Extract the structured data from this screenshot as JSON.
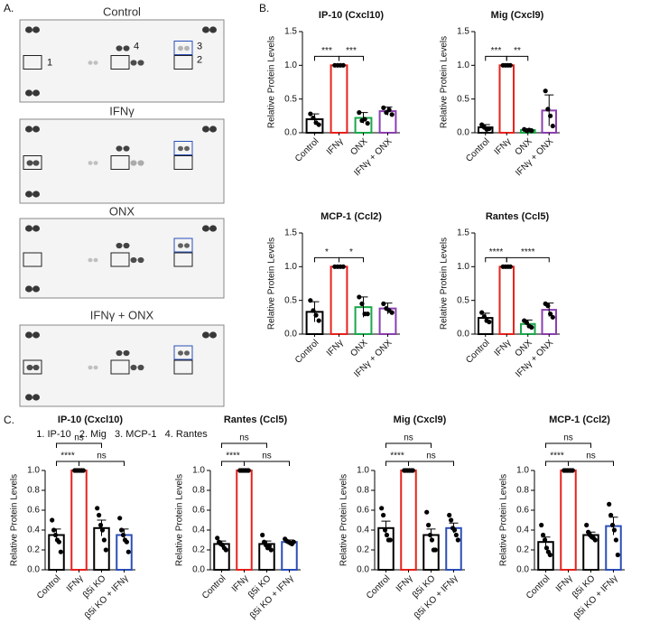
{
  "panel_labels": [
    "A.",
    "B.",
    "C."
  ],
  "blots": {
    "titles": [
      "Control",
      "IFNγ",
      "ONX",
      "IFNγ + ONX"
    ],
    "spot_labels": [
      "1",
      "4",
      "3",
      "2"
    ],
    "legend": "1. IP-10   2. Mig   3. MCP-1   4. Rantes"
  },
  "chart_data": [
    {
      "type": "bar",
      "title": "IP-10 (Cxcl10)",
      "y_label": "Relative Protein Levels",
      "categories": [
        "Control",
        "IFNγ",
        "ONX",
        "IFNγ + ONX"
      ],
      "colors": [
        "#000000",
        "#e8221c",
        "#1aa84a",
        "#8a3fb0"
      ],
      "values": [
        0.2,
        1.0,
        0.22,
        0.32
      ],
      "errors": [
        0.08,
        0,
        0.08,
        0.06
      ],
      "points": [
        [
          0.28,
          0.22,
          0.15,
          0.12
        ],
        [
          1,
          1,
          1,
          1
        ],
        [
          0.3,
          0.18,
          0.2,
          0.14
        ],
        [
          0.37,
          0.3,
          0.34,
          0.27
        ]
      ],
      "significance": [
        {
          "pair": [
            0,
            1
          ],
          "label": "***"
        },
        {
          "pair": [
            1,
            2
          ],
          "label": "***"
        }
      ],
      "ylim": [
        0,
        1.5
      ],
      "yticks": [
        {
          "value": 0,
          "label": "0.0"
        },
        {
          "value": 0.5,
          "label": "0.5"
        },
        {
          "value": 1,
          "label": "1.0"
        },
        {
          "value": 1.5,
          "label": "1.5"
        }
      ]
    },
    {
      "type": "bar",
      "title": "Mig (Cxcl9)",
      "y_label": "Relative Protein Levels",
      "categories": [
        "Control",
        "IFNγ",
        "ONX",
        "IFNγ + ONX"
      ],
      "colors": [
        "#000000",
        "#e8221c",
        "#1aa84a",
        "#8a3fb0"
      ],
      "values": [
        0.08,
        1.0,
        0.04,
        0.33
      ],
      "errors": [
        0.04,
        0,
        0.02,
        0.23
      ],
      "points": [
        [
          0.12,
          0.08,
          0.05,
          0.06
        ],
        [
          1,
          1,
          1,
          1
        ],
        [
          0.05,
          0.03,
          0.04,
          0.03
        ],
        [
          0.62,
          0.35,
          0.25,
          0.1
        ]
      ],
      "significance": [
        {
          "pair": [
            0,
            1
          ],
          "label": "***"
        },
        {
          "pair": [
            1,
            2
          ],
          "label": "**"
        }
      ],
      "ylim": [
        0,
        1.5
      ],
      "yticks": [
        {
          "value": 0,
          "label": "0.0"
        },
        {
          "value": 0.5,
          "label": "0.5"
        },
        {
          "value": 1,
          "label": "1.0"
        },
        {
          "value": 1.5,
          "label": "1.5"
        }
      ]
    },
    {
      "type": "bar",
      "title": "MCP-1 (Ccl2)",
      "y_label": "Relative Protein Levels",
      "categories": [
        "Control",
        "IFNγ",
        "ONX",
        "IFNγ + ONX"
      ],
      "colors": [
        "#000000",
        "#e8221c",
        "#1aa84a",
        "#8a3fb0"
      ],
      "values": [
        0.33,
        1.0,
        0.4,
        0.38
      ],
      "errors": [
        0.15,
        0,
        0.15,
        0.08
      ],
      "points": [
        [
          0.5,
          0.35,
          0.28,
          0.2
        ],
        [
          1,
          1,
          1,
          1
        ],
        [
          0.55,
          0.45,
          0.3,
          0.3
        ],
        [
          0.45,
          0.38,
          0.35,
          0.32
        ]
      ],
      "significance": [
        {
          "pair": [
            0,
            1
          ],
          "label": "*"
        },
        {
          "pair": [
            1,
            2
          ],
          "label": "*"
        }
      ],
      "ylim": [
        0,
        1.5
      ],
      "yticks": [
        {
          "value": 0,
          "label": "0.0"
        },
        {
          "value": 0.5,
          "label": "0.5"
        },
        {
          "value": 1,
          "label": "1.0"
        },
        {
          "value": 1.5,
          "label": "1.5"
        }
      ]
    },
    {
      "type": "bar",
      "title": "Rantes (Ccl5)",
      "y_label": "Relative Protein Levels",
      "categories": [
        "Control",
        "IFNγ",
        "ONX",
        "IFNγ + ONX"
      ],
      "colors": [
        "#000000",
        "#e8221c",
        "#1aa84a",
        "#8a3fb0"
      ],
      "values": [
        0.24,
        1.0,
        0.15,
        0.36
      ],
      "errors": [
        0.07,
        0,
        0.06,
        0.1
      ],
      "points": [
        [
          0.32,
          0.26,
          0.2,
          0.18
        ],
        [
          1,
          1,
          1,
          1
        ],
        [
          0.2,
          0.17,
          0.12,
          0.1
        ],
        [
          0.45,
          0.42,
          0.3,
          0.25
        ]
      ],
      "significance": [
        {
          "pair": [
            0,
            1
          ],
          "label": "****"
        },
        {
          "pair": [
            1,
            3
          ],
          "label": "****"
        }
      ],
      "ylim": [
        0,
        1.5
      ],
      "yticks": [
        {
          "value": 0,
          "label": "0.0"
        },
        {
          "value": 0.5,
          "label": "0.5"
        },
        {
          "value": 1,
          "label": "1.0"
        },
        {
          "value": 1.5,
          "label": "1.5"
        }
      ]
    },
    {
      "type": "bar",
      "title": "IP-10 (Cxcl10)",
      "y_label": "Relative Protein Levels",
      "categories": [
        "Control",
        "IFNγ",
        "β5i KO",
        "β5i KO + IFNγ"
      ],
      "colors": [
        "#000000",
        "#e8221c",
        "#000000",
        "#2a4fb8"
      ],
      "values": [
        0.35,
        1.0,
        0.42,
        0.35
      ],
      "errors": [
        0.06,
        0,
        0.08,
        0.06
      ],
      "points": [
        [
          0.5,
          0.4,
          0.35,
          0.3,
          0.28,
          0.18
        ],
        [
          1,
          1,
          1,
          1,
          1,
          1
        ],
        [
          0.62,
          0.55,
          0.45,
          0.4,
          0.3,
          0.2
        ],
        [
          0.52,
          0.4,
          0.35,
          0.3,
          0.28,
          0.18
        ]
      ],
      "significance": [
        {
          "pair": [
            0,
            1
          ],
          "label": "****"
        },
        {
          "pair": [
            1,
            3
          ],
          "label": "ns"
        },
        {
          "pair": [
            0,
            2
          ],
          "label": "ns"
        }
      ],
      "ylim": [
        0,
        1.0
      ],
      "yticks": [
        {
          "value": 0,
          "label": "0.0"
        },
        {
          "value": 0.2,
          "label": "0.2"
        },
        {
          "value": 0.4,
          "label": "0.4"
        },
        {
          "value": 0.6,
          "label": "0.6"
        },
        {
          "value": 0.8,
          "label": "0.8"
        },
        {
          "value": 1,
          "label": "1.0"
        }
      ]
    },
    {
      "type": "bar",
      "title": "Rantes (Ccl5)",
      "y_label": "Relative Protein Levels",
      "categories": [
        "Control",
        "IFNγ",
        "β5i KO",
        "β5i KO + IFNγ"
      ],
      "colors": [
        "#000000",
        "#e8221c",
        "#000000",
        "#2a4fb8"
      ],
      "values": [
        0.26,
        1.0,
        0.26,
        0.28
      ],
      "errors": [
        0.03,
        0,
        0.03,
        0.02
      ],
      "points": [
        [
          0.32,
          0.28,
          0.26,
          0.25,
          0.22,
          0.2
        ],
        [
          1,
          1,
          1,
          1,
          1,
          1
        ],
        [
          0.35,
          0.28,
          0.25,
          0.22,
          0.24,
          0.2
        ],
        [
          0.31,
          0.29,
          0.28,
          0.27,
          0.26,
          0.28
        ]
      ],
      "significance": [
        {
          "pair": [
            0,
            1
          ],
          "label": "****"
        },
        {
          "pair": [
            1,
            3
          ],
          "label": "ns"
        },
        {
          "pair": [
            0,
            2
          ],
          "label": "ns"
        }
      ],
      "ylim": [
        0,
        1.0
      ],
      "yticks": [
        {
          "value": 0,
          "label": "0.0"
        },
        {
          "value": 0.2,
          "label": "0.2"
        },
        {
          "value": 0.4,
          "label": "0.4"
        },
        {
          "value": 0.6,
          "label": "0.6"
        },
        {
          "value": 0.8,
          "label": "0.8"
        },
        {
          "value": 1,
          "label": "1.0"
        }
      ]
    },
    {
      "type": "bar",
      "title": "Mig (Cxcl9)",
      "y_label": "Relative Protein Levels",
      "categories": [
        "Control",
        "IFNγ",
        "β5i KO",
        "β5i KO + IFNγ"
      ],
      "colors": [
        "#000000",
        "#e8221c",
        "#000000",
        "#2a4fb8"
      ],
      "values": [
        0.42,
        1.0,
        0.35,
        0.42
      ],
      "errors": [
        0.07,
        0,
        0.06,
        0.05
      ],
      "points": [
        [
          0.62,
          0.55,
          0.4,
          0.35,
          0.3,
          0.3
        ],
        [
          1,
          1,
          1,
          1,
          1,
          1
        ],
        [
          0.58,
          0.45,
          0.35,
          0.3,
          0.2,
          0.2
        ],
        [
          0.55,
          0.5,
          0.42,
          0.4,
          0.35,
          0.3
        ]
      ],
      "significance": [
        {
          "pair": [
            0,
            1
          ],
          "label": "****"
        },
        {
          "pair": [
            1,
            3
          ],
          "label": "ns"
        },
        {
          "pair": [
            0,
            2
          ],
          "label": "ns"
        }
      ],
      "ylim": [
        0,
        1.0
      ],
      "yticks": [
        {
          "value": 0,
          "label": "0.0"
        },
        {
          "value": 0.2,
          "label": "0.2"
        },
        {
          "value": 0.4,
          "label": "0.4"
        },
        {
          "value": 0.6,
          "label": "0.6"
        },
        {
          "value": 0.8,
          "label": "0.8"
        },
        {
          "value": 1,
          "label": "1.0"
        }
      ]
    },
    {
      "type": "bar",
      "title": "MCP-1 (Ccl2)",
      "y_label": "Relative Protein Levels",
      "categories": [
        "Control",
        "IFNγ",
        "β5i KO",
        "β5i KO + IFNγ"
      ],
      "colors": [
        "#000000",
        "#e8221c",
        "#000000",
        "#2a4fb8"
      ],
      "values": [
        0.28,
        1.0,
        0.35,
        0.44
      ],
      "errors": [
        0.05,
        0,
        0.03,
        0.09
      ],
      "points": [
        [
          0.45,
          0.35,
          0.3,
          0.22,
          0.18,
          0.15
        ],
        [
          1,
          1,
          1,
          1,
          1,
          1
        ],
        [
          0.45,
          0.38,
          0.35,
          0.33,
          0.32,
          0.3
        ],
        [
          0.66,
          0.55,
          0.45,
          0.4,
          0.3,
          0.15
        ]
      ],
      "significance": [
        {
          "pair": [
            0,
            1
          ],
          "label": "****"
        },
        {
          "pair": [
            1,
            3
          ],
          "label": "ns"
        },
        {
          "pair": [
            0,
            2
          ],
          "label": "ns"
        }
      ],
      "ylim": [
        0,
        1.0
      ],
      "yticks": [
        {
          "value": 0,
          "label": "0.0"
        },
        {
          "value": 0.2,
          "label": "0.2"
        },
        {
          "value": 0.4,
          "label": "0.4"
        },
        {
          "value": 0.6,
          "label": "0.6"
        },
        {
          "value": 0.8,
          "label": "0.8"
        },
        {
          "value": 1,
          "label": "1.0"
        }
      ]
    }
  ]
}
